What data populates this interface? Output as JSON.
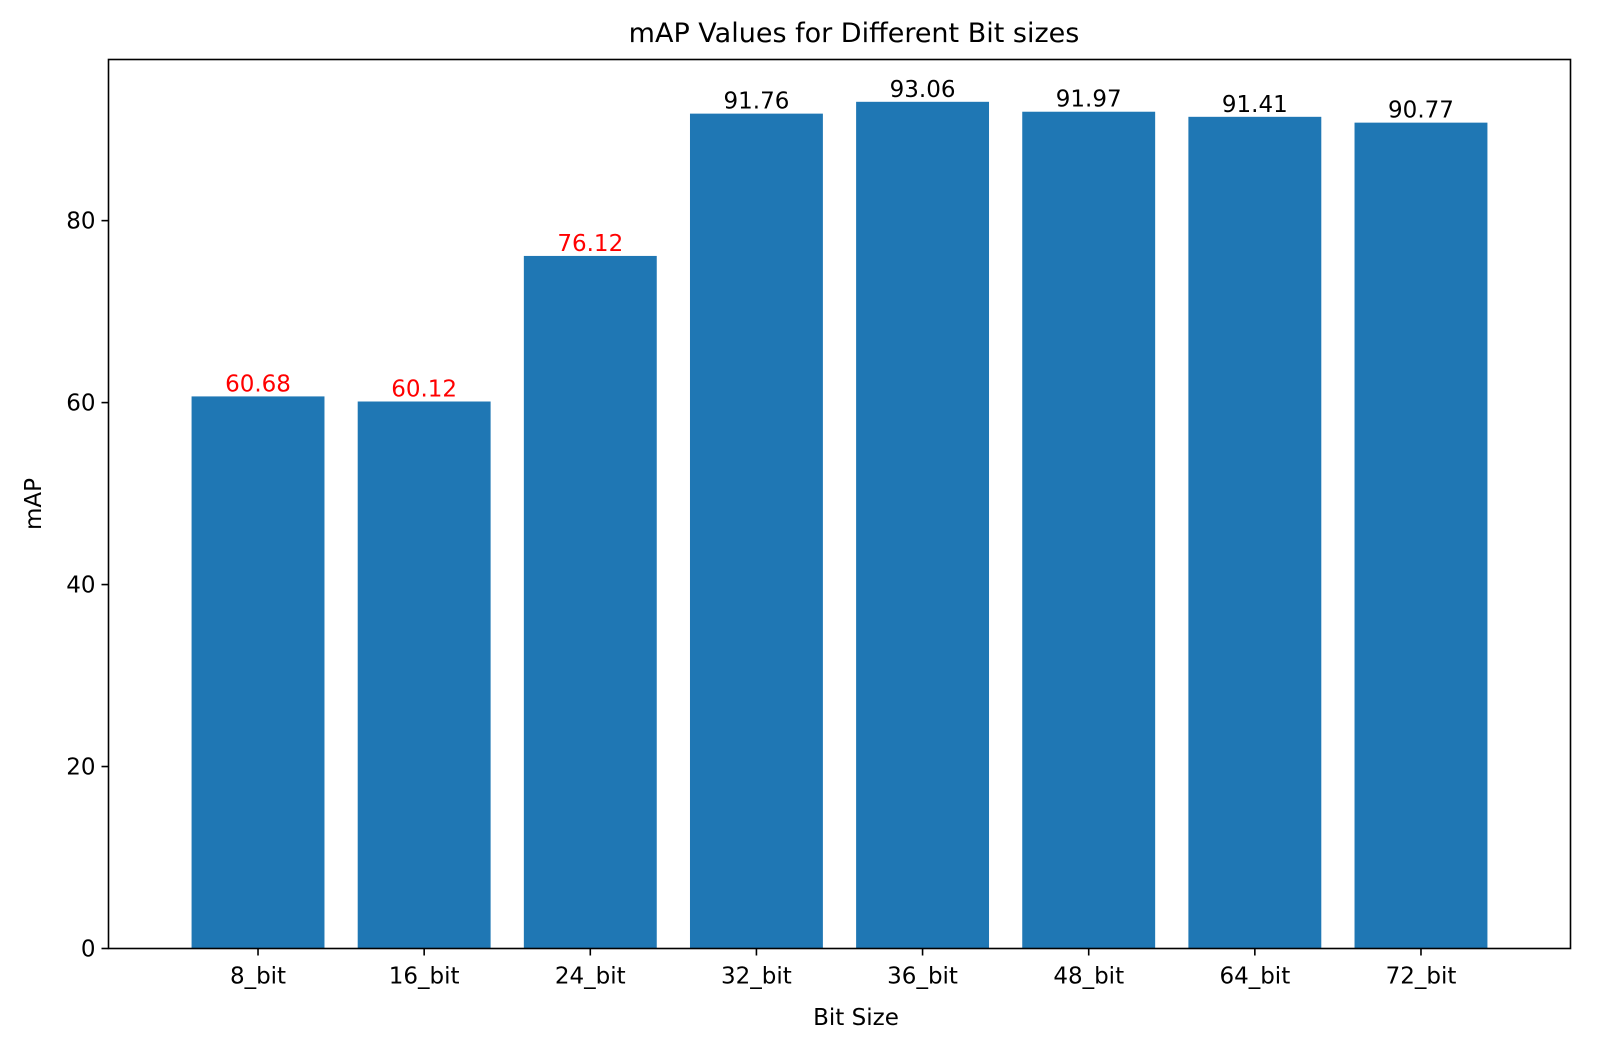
{
  "chart_data": {
    "type": "bar",
    "title": "mAP Values for Different Bit sizes",
    "xlabel": "Bit Size",
    "ylabel": "mAP",
    "categories": [
      "8_bit",
      "16_bit",
      "24_bit",
      "32_bit",
      "36_bit",
      "48_bit",
      "64_bit",
      "72_bit"
    ],
    "values": [
      60.68,
      60.12,
      76.12,
      91.76,
      93.06,
      91.97,
      91.41,
      90.77
    ],
    "value_labels": [
      "60.68",
      "60.12",
      "76.12",
      "91.76",
      "93.06",
      "91.97",
      "91.41",
      "90.77"
    ],
    "value_label_colors": [
      "#ff0000",
      "#ff0000",
      "#ff0000",
      "#000000",
      "#000000",
      "#000000",
      "#000000",
      "#000000"
    ],
    "ylim": [
      0,
      97.71
    ],
    "yticks": [
      0,
      20,
      40,
      60,
      80
    ],
    "ytick_labels": [
      "0",
      "20",
      "40",
      "60",
      "80"
    ],
    "bar_color": "#1f77b4",
    "grid": false,
    "legend": "none"
  }
}
